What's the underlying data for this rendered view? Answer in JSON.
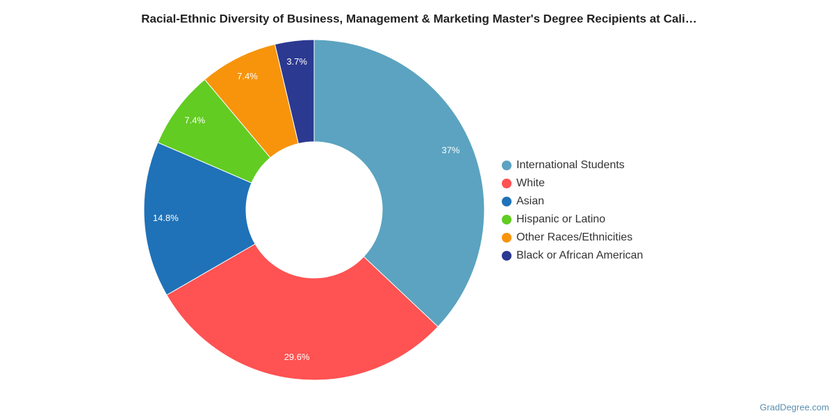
{
  "chart_data": {
    "type": "donut",
    "title": "Racial-Ethnic Diversity of Business, Management & Marketing Master's Degree Recipients at Cali…",
    "categories": [
      "International Students",
      "White",
      "Asian",
      "Hispanic or Latino",
      "Other Races/Ethnicities",
      "Black or African American"
    ],
    "values": [
      37,
      29.6,
      14.8,
      7.4,
      7.4,
      3.7
    ],
    "value_labels": [
      "37%",
      "29.6%",
      "14.8%",
      "7.4%",
      "7.4%",
      "3.7%"
    ],
    "colors": [
      "#5ba3c0",
      "#ff5252",
      "#1f72b8",
      "#62cc22",
      "#f7940b",
      "#2b3990"
    ],
    "credit": "GradDegree.com"
  }
}
